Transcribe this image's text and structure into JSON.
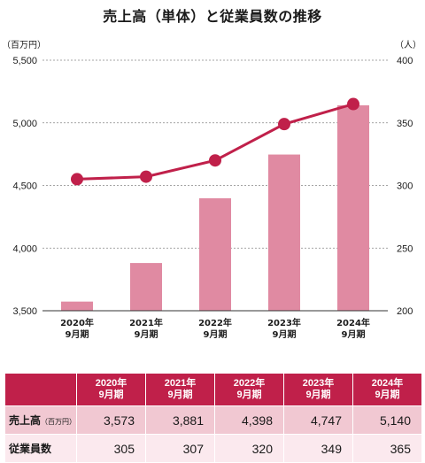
{
  "title": "売上高（単体）と従業員数の推移",
  "units": {
    "left": "（百万円）",
    "right": "（人）"
  },
  "colors": {
    "bar": "#e08aa2",
    "line": "#c0204a",
    "header": "#c0204a",
    "grid": "#888888"
  },
  "chart_data": {
    "type": "bar+line",
    "categories": [
      "2020年\n9月期",
      "2021年\n9月期",
      "2022年\n9月期",
      "2023年\n9月期",
      "2024年\n9月期"
    ],
    "series": [
      {
        "name": "売上高",
        "type": "bar",
        "axis": "left",
        "values": [
          3573,
          3881,
          4398,
          4747,
          5140
        ]
      },
      {
        "name": "従業員数",
        "type": "line",
        "axis": "right",
        "values": [
          305,
          307,
          320,
          349,
          365
        ]
      }
    ],
    "y_left": {
      "min": 3500,
      "max": 5500,
      "ticks": [
        3500,
        4000,
        4500,
        5000,
        5500
      ],
      "tick_labels": [
        "3,500",
        "4,000",
        "4,500",
        "5,000",
        "5,500"
      ]
    },
    "y_right": {
      "min": 200,
      "max": 400,
      "ticks": [
        200,
        250,
        300,
        350,
        400
      ],
      "tick_labels": [
        "200",
        "250",
        "300",
        "350",
        "400"
      ]
    },
    "grid": true
  },
  "table": {
    "headers": [
      "2020年\n9月期",
      "2021年\n9月期",
      "2022年\n9月期",
      "2023年\n9月期",
      "2024年\n9月期"
    ],
    "rows": [
      {
        "label": "売上高",
        "label_suffix": "（百万円）",
        "values": [
          "3,573",
          "3,881",
          "4,398",
          "4,747",
          "5,140"
        ]
      },
      {
        "label": "従業員数",
        "label_suffix": "",
        "values": [
          "305",
          "307",
          "320",
          "349",
          "365"
        ]
      }
    ]
  }
}
